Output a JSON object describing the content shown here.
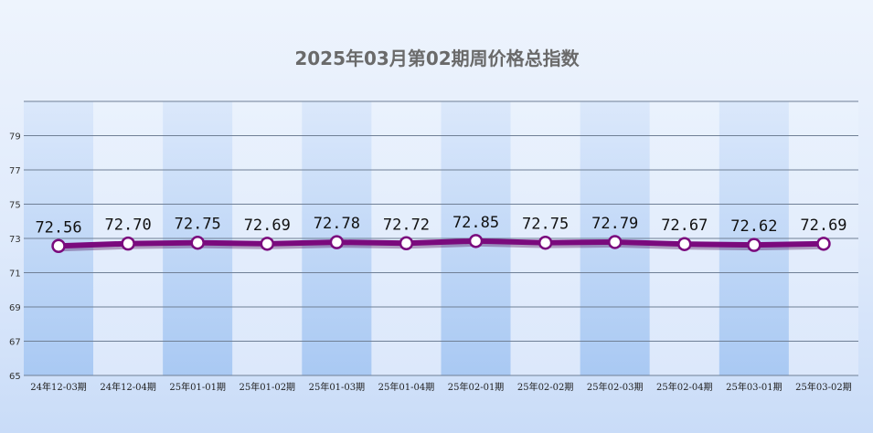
{
  "chart_data": {
    "type": "line",
    "title": "2025年03月第02期周价格总指数",
    "xlabel": "",
    "ylabel": "",
    "categories": [
      "24年12-03期",
      "24年12-04期",
      "25年01-01期",
      "25年01-02期",
      "25年01-03期",
      "25年01-04期",
      "25年02-01期",
      "25年02-02期",
      "25年02-03期",
      "25年02-04期",
      "25年03-01期",
      "25年03-02期"
    ],
    "series": [
      {
        "values": [
          72.56,
          72.7,
          72.75,
          72.69,
          72.78,
          72.72,
          72.85,
          72.75,
          72.79,
          72.67,
          72.62,
          72.69
        ]
      }
    ],
    "data_labels": [
      "72.56",
      "72.70",
      "72.75",
      "72.69",
      "72.78",
      "72.72",
      "72.85",
      "72.75",
      "72.79",
      "72.67",
      "72.62",
      "72.69"
    ],
    "ylim": [
      65,
      81
    ],
    "yticks": [
      65,
      67,
      69,
      71,
      73,
      75,
      77,
      79
    ],
    "grid": true,
    "legend": "none",
    "colors": {
      "line": "#7a0a7d",
      "marker_fill": "#ffffff",
      "band_dark": "#a9c9f3",
      "band_light": "#e6effc",
      "gridline": "#6f7f95"
    }
  }
}
